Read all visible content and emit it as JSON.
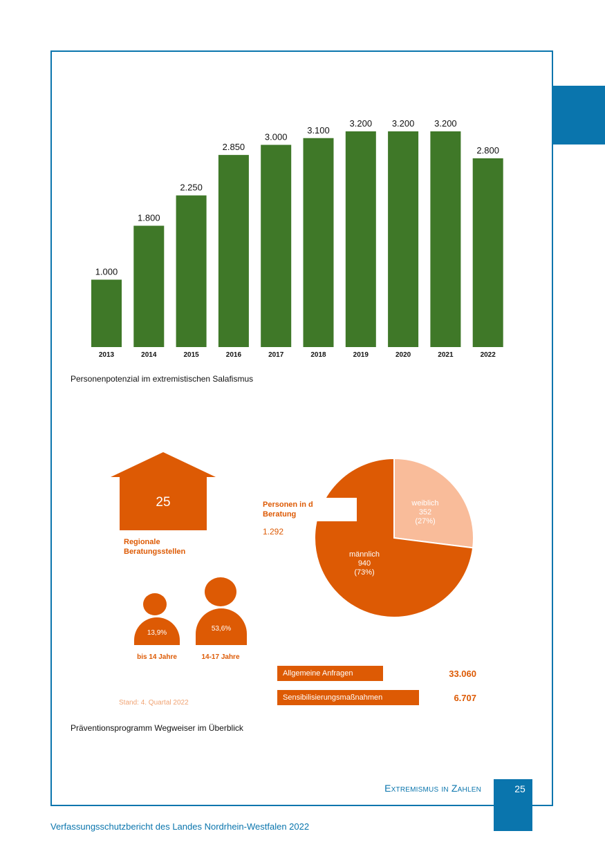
{
  "chart_data": {
    "type": "bar",
    "title": "Personenpotenzial im extremistischen Salafismus",
    "categories": [
      "2013",
      "2014",
      "2015",
      "2016",
      "2017",
      "2018",
      "2019",
      "2020",
      "2021",
      "2022"
    ],
    "values": [
      1000,
      1800,
      2250,
      2850,
      3000,
      3100,
      3200,
      3200,
      3200,
      2800
    ],
    "value_labels": [
      "1.000",
      "1.800",
      "2.250",
      "2.850",
      "3.000",
      "3.100",
      "3.200",
      "3.200",
      "3.200",
      "2.800"
    ],
    "xlabel": "",
    "ylabel": "",
    "ylim": [
      0,
      3200
    ],
    "color": "#3f7828"
  },
  "captions": {
    "chart": "Personenpotenzial im extremistischen Salafismus",
    "infographic": "Präventionsprogramm Wegweiser im Überblick"
  },
  "infographic": {
    "house_number": "25",
    "house_label": "Regionale Beratungsstellen",
    "persons_label": "Personen in der Beratung",
    "persons_total": "1.292",
    "pie": {
      "type": "pie",
      "slices": [
        {
          "name": "weiblich",
          "count": "352",
          "percent": "(27%)",
          "value": 27,
          "color": "#f9bc9a"
        },
        {
          "name": "männlich",
          "count": "940",
          "percent": "(73%)",
          "value": 73,
          "color": "#dd5a04"
        }
      ]
    },
    "age_groups": [
      {
        "percent": "13,9%",
        "label": "bis 14 Jahre"
      },
      {
        "percent": "53,6%",
        "label": "14-17 Jahre"
      }
    ],
    "stats": [
      {
        "label": "Allgemeine Anfragen",
        "value": "33.060"
      },
      {
        "label": "Sensibilisierungsmaßnahmen",
        "value": "6.707"
      }
    ],
    "stand": "Stand: 4. Quartal 2022"
  },
  "footer": {
    "section_title": "Extremismus in Zahlen",
    "page_number": "25",
    "publication": "Verfassungsschutzbericht des Landes Nordrhein-Westfalen 2022"
  },
  "colors": {
    "blue": "#0a75ad",
    "orange": "#dd5a04",
    "light_orange": "#f9bc9a",
    "green": "#3f7828"
  }
}
